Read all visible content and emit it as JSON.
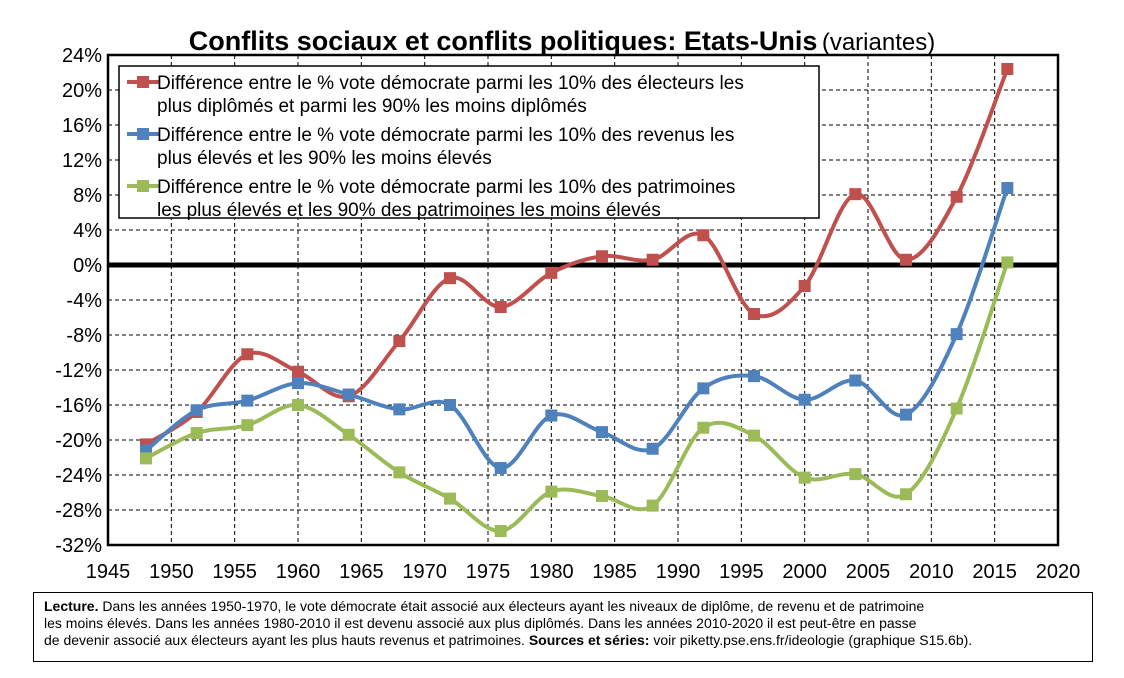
{
  "title": {
    "main": "Conflits sociaux et conflits politiques: Etats-Unis",
    "sub": "(variantes)"
  },
  "chart_data": {
    "type": "line",
    "title": "Conflits sociaux et conflits politiques: Etats-Unis (variantes)",
    "xlabel": "",
    "ylabel": "",
    "xlim": [
      1945,
      2020
    ],
    "ylim": [
      -32,
      24
    ],
    "x_ticks": [
      "1945",
      "1950",
      "1955",
      "1960",
      "1965",
      "1970",
      "1975",
      "1980",
      "1985",
      "1990",
      "1995",
      "2000",
      "2005",
      "2010",
      "2015",
      "2020"
    ],
    "y_ticks": [
      "24%",
      "20%",
      "16%",
      "12%",
      "8%",
      "4%",
      "0%",
      "-4%",
      "-8%",
      "-12%",
      "-16%",
      "-20%",
      "-24%",
      "-28%",
      "-32%"
    ],
    "grid": "dashed",
    "legend_position": "top-left",
    "x": [
      1948,
      1952,
      1956,
      1960,
      1964,
      1968,
      1972,
      1976,
      1980,
      1984,
      1988,
      1992,
      1996,
      2000,
      2004,
      2008,
      2012,
      2016
    ],
    "series": [
      {
        "name": "Différence entre le % vote démocrate parmi les 10% des électeurs les plus diplômés et parmi les 90% les moins diplômés",
        "legend_lines": [
          "Différence entre le % vote démocrate parmi les 10% des électeurs les",
          "plus diplômés et parmi les 90% les moins diplômés"
        ],
        "color": "#c0504d",
        "values": [
          -20.5,
          -16.8,
          -10.2,
          -12.2,
          -15.0,
          -8.7,
          -1.5,
          -4.8,
          -0.9,
          1.0,
          0.6,
          3.4,
          -5.6,
          -2.4,
          8.1,
          0.6,
          7.8,
          22.4
        ]
      },
      {
        "name": "Différence entre le % vote démocrate parmi les 10% des revenus les plus élevés et les 90% les moins élevés",
        "legend_lines": [
          "Différence entre le % vote démocrate parmi les 10% des revenus les",
          "plus élevés et les 90% les moins élevés"
        ],
        "color": "#4f81bd",
        "values": [
          -21.2,
          -16.6,
          -15.5,
          -13.5,
          -14.8,
          -16.5,
          -16.0,
          -23.2,
          -17.2,
          -19.1,
          -21.0,
          -14.1,
          -12.7,
          -15.4,
          -13.2,
          -17.1,
          -7.9,
          8.8
        ]
      },
      {
        "name": "Différence entre le % vote démocrate parmi les 10% des patrimoines les plus élevés et les 90% des patrimoines les moins élevés",
        "legend_lines": [
          "Différence entre le % vote démocrate parmi les 10% des patrimoines",
          "les plus élevés et les 90% des patrimoines les moins élevés"
        ],
        "color": "#9bbb59",
        "values": [
          -22.1,
          -19.2,
          -18.3,
          -16.0,
          -19.4,
          -23.7,
          -26.7,
          -30.4,
          -25.9,
          -26.4,
          -27.5,
          -18.6,
          -19.5,
          -24.3,
          -23.9,
          -26.2,
          -16.4,
          0.3
        ]
      }
    ]
  },
  "note": {
    "lecture_label": "Lecture.",
    "line1": "Dans les années 1950-1970, le vote démocrate était associé aux électeurs ayant les niveaux de diplôme, de revenu et de patrimoine",
    "line2": "les moins élevés. Dans les années 1980-2010 il est devenu associé aux plus diplômés. Dans les années 2010-2020 il est peut-être en passe",
    "line3": "de devenir associé aux électeurs ayant les plus hauts revenus et patrimoines.",
    "sources_label": "Sources et séries:",
    "sources_text": "voir piketty.pse.ens.fr/ideologie (graphique S15.6b)."
  }
}
